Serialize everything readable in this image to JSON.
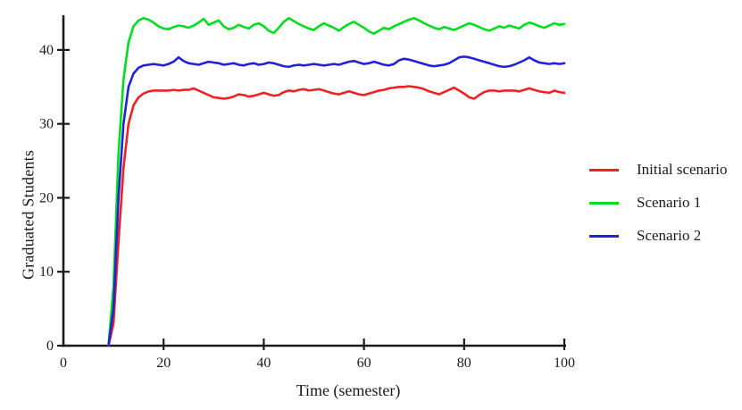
{
  "chart_data": {
    "type": "line",
    "title": "",
    "xlabel": "Time (semester)",
    "ylabel": "Graduated Students",
    "xlim": [
      0,
      100
    ],
    "ylim": [
      0,
      44.7
    ],
    "x_ticks": [
      0,
      20,
      40,
      60,
      80,
      100
    ],
    "y_ticks": [
      0,
      10,
      20,
      30,
      40
    ],
    "grid": false,
    "legend_position": "right-outside",
    "axis_color": "#1a1a1a",
    "background_color": "#ffffff",
    "x": [
      9,
      10,
      11,
      12,
      13,
      14,
      15,
      16,
      17,
      18,
      19,
      20,
      21,
      22,
      23,
      24,
      25,
      26,
      27,
      28,
      29,
      30,
      31,
      32,
      33,
      34,
      35,
      36,
      37,
      38,
      39,
      40,
      41,
      42,
      43,
      44,
      45,
      46,
      47,
      48,
      49,
      50,
      51,
      52,
      53,
      54,
      55,
      56,
      57,
      58,
      59,
      60,
      61,
      62,
      63,
      64,
      65,
      66,
      67,
      68,
      69,
      70,
      71,
      72,
      73,
      74,
      75,
      76,
      77,
      78,
      79,
      80,
      81,
      82,
      83,
      84,
      85,
      86,
      87,
      88,
      89,
      90,
      91,
      92,
      93,
      94,
      95,
      96,
      97,
      98,
      99,
      100
    ],
    "series": [
      {
        "name": "Initial scenario",
        "color": "#ee2222",
        "values": [
          0,
          3,
          14,
          24,
          30,
          32.5,
          33.6,
          34.1,
          34.4,
          34.5,
          34.5,
          34.5,
          34.5,
          34.6,
          34.5,
          34.6,
          34.6,
          34.8,
          34.5,
          34.2,
          33.9,
          33.6,
          33.5,
          33.4,
          33.5,
          33.7,
          34.0,
          33.9,
          33.7,
          33.8,
          34.0,
          34.2,
          34.0,
          33.8,
          33.9,
          34.3,
          34.5,
          34.4,
          34.6,
          34.7,
          34.5,
          34.6,
          34.7,
          34.5,
          34.3,
          34.1,
          34.0,
          34.2,
          34.4,
          34.2,
          34.0,
          33.9,
          34.1,
          34.3,
          34.5,
          34.6,
          34.8,
          34.9,
          35.0,
          35.0,
          35.1,
          35.0,
          34.9,
          34.7,
          34.4,
          34.2,
          34.0,
          34.3,
          34.6,
          34.9,
          34.5,
          34.1,
          33.6,
          33.4,
          33.9,
          34.3,
          34.5,
          34.5,
          34.4,
          34.5,
          34.5,
          34.5,
          34.4,
          34.6,
          34.8,
          34.6,
          34.4,
          34.3,
          34.2,
          34.5,
          34.3,
          34.2
        ]
      },
      {
        "name": "Scenario 1",
        "color": "#00dd1e",
        "values": [
          0,
          8,
          26,
          36,
          41,
          43.2,
          44.0,
          44.3,
          44.1,
          43.7,
          43.2,
          42.9,
          42.8,
          43.1,
          43.3,
          43.2,
          43.0,
          43.3,
          43.7,
          44.2,
          43.4,
          43.7,
          44.0,
          43.2,
          42.8,
          43.0,
          43.4,
          43.1,
          42.9,
          43.4,
          43.6,
          43.2,
          42.6,
          42.3,
          43.0,
          43.8,
          44.3,
          43.9,
          43.5,
          43.2,
          42.9,
          42.7,
          43.2,
          43.6,
          43.3,
          43.0,
          42.6,
          43.1,
          43.5,
          43.8,
          43.4,
          43.0,
          42.5,
          42.2,
          42.6,
          43.0,
          42.8,
          43.2,
          43.5,
          43.8,
          44.1,
          44.3,
          44.0,
          43.6,
          43.3,
          43.0,
          42.8,
          43.1,
          42.9,
          42.7,
          43.0,
          43.3,
          43.6,
          43.4,
          43.1,
          42.8,
          42.6,
          42.9,
          43.2,
          43.0,
          43.3,
          43.1,
          42.9,
          43.4,
          43.7,
          43.5,
          43.2,
          43.0,
          43.3,
          43.6,
          43.4,
          43.5
        ]
      },
      {
        "name": "Scenario 2",
        "color": "#2121d8",
        "values": [
          0,
          5,
          20,
          30,
          35,
          36.8,
          37.6,
          37.9,
          38.0,
          38.1,
          38.0,
          37.9,
          38.1,
          38.4,
          39.0,
          38.5,
          38.2,
          38.1,
          38.0,
          38.2,
          38.4,
          38.3,
          38.2,
          38.0,
          38.1,
          38.2,
          38.0,
          37.9,
          38.1,
          38.2,
          38.0,
          38.1,
          38.3,
          38.2,
          38.0,
          37.8,
          37.7,
          37.9,
          38.0,
          37.9,
          38.0,
          38.1,
          38.0,
          37.9,
          38.0,
          38.1,
          38.0,
          38.2,
          38.4,
          38.5,
          38.3,
          38.1,
          38.2,
          38.4,
          38.2,
          38.0,
          37.9,
          38.1,
          38.6,
          38.8,
          38.7,
          38.5,
          38.3,
          38.1,
          37.9,
          37.8,
          37.9,
          38.0,
          38.2,
          38.6,
          39.0,
          39.1,
          39.0,
          38.8,
          38.6,
          38.4,
          38.2,
          38.0,
          37.8,
          37.7,
          37.8,
          38.0,
          38.3,
          38.6,
          39.0,
          38.6,
          38.3,
          38.2,
          38.1,
          38.2,
          38.1,
          38.2
        ]
      }
    ]
  }
}
